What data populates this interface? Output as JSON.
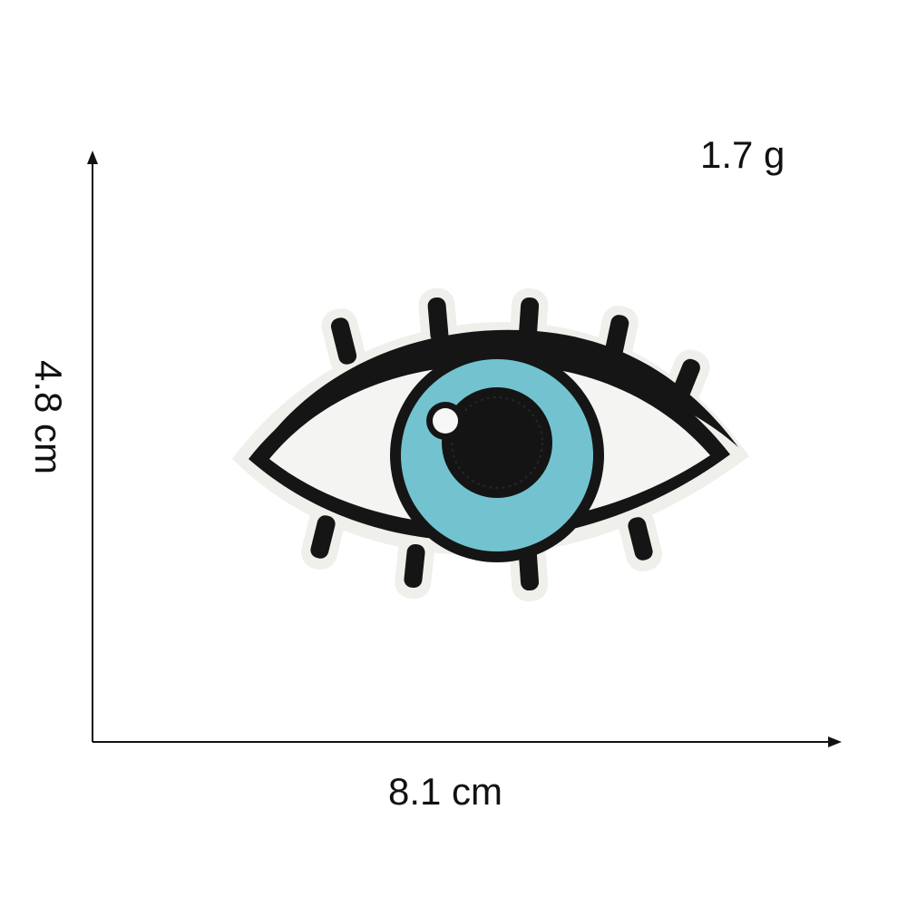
{
  "product": {
    "weight": "1.7 g",
    "width": "8.1 cm",
    "height": "4.8 cm"
  },
  "colors": {
    "background": "#ffffff",
    "axis": "#111111",
    "outline": "#151515",
    "iris": "#72c3cf",
    "pupil": "#141414",
    "eye_white": "#f4f4f2",
    "felt_backing": "#efefec"
  },
  "icons": {
    "patch": "evil-eye-patch-icon"
  }
}
